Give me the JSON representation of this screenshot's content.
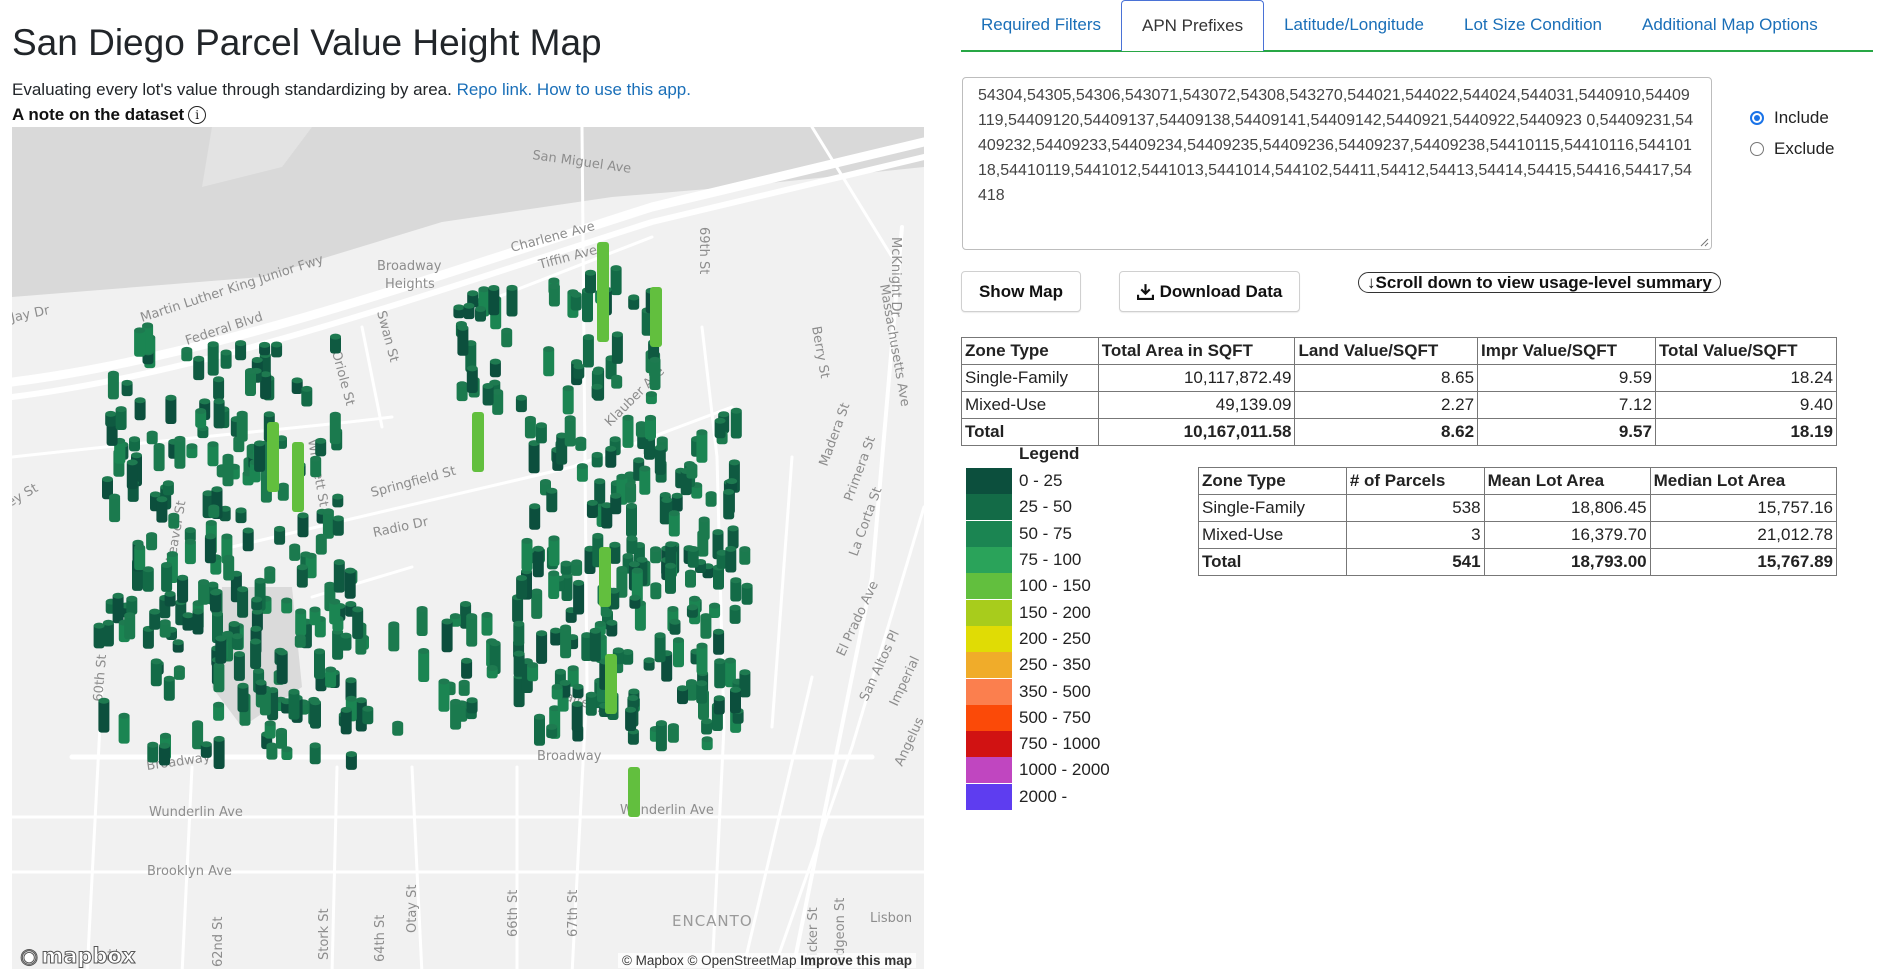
{
  "header": {
    "title": "San Diego Parcel Value Height Map",
    "subtitle_text": "Evaluating every lot's value through standardizing by area.",
    "repo_link": "Repo link.",
    "howto_link": "How to use this app.",
    "note_label": "A note on the dataset",
    "info_glyph": "i"
  },
  "tabs": [
    {
      "label": "Required Filters"
    },
    {
      "label": "APN Prefixes"
    },
    {
      "label": "Latitude/Longitude"
    },
    {
      "label": "Lot Size Condition"
    },
    {
      "label": "Additional Map Options"
    }
  ],
  "active_tab": "APN Prefixes",
  "apn_filter": {
    "value": "54304,54305,54306,543071,543072,54308,543270,544021,544022,544024,544031,5440910,54409119,54409120,54409137,54409138,54409141,54409142,5440921,5440922,5440923 0,54409231,54409232,54409233,54409234,54409235,54409236,54409237,54409238,54410115,54410116,54410118,54410119,5441012,5441013,5441014,544102,54411,54412,54413,54414,54415,54416,54417,54418",
    "options": [
      {
        "label": "Include",
        "checked": true
      },
      {
        "label": "Exclude",
        "checked": false
      }
    ]
  },
  "buttons": {
    "show_map": "Show Map",
    "download": "Download Data",
    "scroll": "↓Scroll down to view usage-level summary"
  },
  "value_table": {
    "headers": [
      "Zone Type",
      "Total Area in SQFT",
      "Land Value/SQFT",
      "Impr Value/SQFT",
      "Total Value/SQFT"
    ],
    "rows": [
      [
        "Single-Family",
        "10,117,872.49",
        "8.65",
        "9.59",
        "18.24"
      ],
      [
        "Mixed-Use",
        "49,139.09",
        "2.27",
        "7.12",
        "9.40"
      ]
    ],
    "total": [
      "Total",
      "10,167,011.58",
      "8.62",
      "9.57",
      "18.19"
    ]
  },
  "parcel_table": {
    "headers": [
      "Zone Type",
      "# of Parcels",
      "Mean Lot Area",
      "Median Lot Area"
    ],
    "rows": [
      [
        "Single-Family",
        "538",
        "18,806.45",
        "15,757.16"
      ],
      [
        "Mixed-Use",
        "3",
        "16,379.70",
        "21,012.78"
      ]
    ],
    "total": [
      "Total",
      "541",
      "18,793.00",
      "15,767.89"
    ]
  },
  "legend": {
    "title": "Legend",
    "items": [
      {
        "label": "0 - 25",
        "color": "#0c4f3d"
      },
      {
        "label": "25 - 50",
        "color": "#136b47"
      },
      {
        "label": "50 - 75",
        "color": "#1b8552"
      },
      {
        "label": "75 - 100",
        "color": "#2aa35a"
      },
      {
        "label": "100 - 150",
        "color": "#62bf3e"
      },
      {
        "label": "150 - 200",
        "color": "#a8cc1c"
      },
      {
        "label": "200 - 250",
        "color": "#e0dc05"
      },
      {
        "label": "250 - 350",
        "color": "#f0ac2a"
      },
      {
        "label": "350 - 500",
        "color": "#fb7f4e"
      },
      {
        "label": "500 - 750",
        "color": "#fb4a08"
      },
      {
        "label": "750 - 1000",
        "color": "#d11212"
      },
      {
        "label": "1000 - 2000",
        "color": "#c046c0"
      },
      {
        "label": "2000 -",
        "color": "#5e3df0"
      }
    ]
  },
  "map": {
    "labels": [
      "San Miguel Ave",
      "Charlene Ave",
      "Tiffin Ave",
      "69th St",
      "McKnight Dr",
      "Martin Luther King Junior Fwy",
      "Federal Blvd",
      "Broadway",
      "Heights",
      "Jay Dr",
      "Swan St",
      "Oriole St",
      "Springfield St",
      "Berry St",
      "Massachusetts Ave",
      "Klauber Ave",
      "Madera St",
      "Primera St",
      "Radio Dr",
      "La Corta St",
      "ey St",
      "Winnett St",
      "Weaver St",
      "El Prado Ave",
      "San Altos Pl",
      "Imperial",
      "60th St",
      "Valtern St",
      "Angelus",
      "Wunderlin Ave",
      "Brooklyn Ave",
      "62nd St",
      "Stork St",
      "64th St",
      "Otay St",
      "66th St",
      "67th St",
      "Flicker St",
      "Pidgeon St",
      "ENCANTO",
      "Lisbon",
      "St"
    ],
    "attribution": "© Mapbox © OpenStreetMap",
    "improve": "Improve this map",
    "logo": "mapbox"
  }
}
